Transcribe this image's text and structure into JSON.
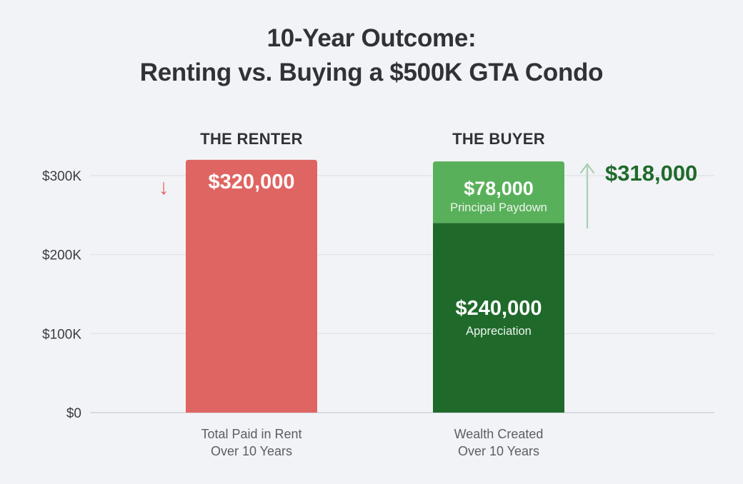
{
  "title": {
    "line1": "10-Year Outcome:",
    "line2": "Renting vs. Buying a $500K GTA Condo"
  },
  "colors": {
    "background": "#f2f3f6",
    "renter": "#df6562",
    "principal": "#59b05a",
    "appreciation": "#1f6a2b",
    "total_text": "#1f6a2b",
    "up_arrow": "#a9cfb0",
    "down_arrow": "#df6562",
    "grid": "#dfe1e5"
  },
  "chart_data": {
    "type": "bar",
    "stacked": true,
    "categories": [
      "THE RENTER",
      "THE BUYER"
    ],
    "category_footers": [
      [
        "Total Paid in Rent",
        "Over 10 Years"
      ],
      [
        "Wealth Created",
        "Over 10 Years"
      ]
    ],
    "y_ticks": [
      {
        "value": 0,
        "label": "$0"
      },
      {
        "value": 100000,
        "label": "$100K"
      },
      {
        "value": 200000,
        "label": "$200K"
      },
      {
        "value": 300000,
        "label": "$300K"
      }
    ],
    "ylim": [
      0,
      300000
    ],
    "grid": true,
    "series": [
      {
        "category_index": 0,
        "value": 320000,
        "label": "$320,000",
        "sublabel": "",
        "color_key": "renter"
      },
      {
        "category_index": 1,
        "value": 240000,
        "label": "$240,000",
        "sublabel": "Appreciation",
        "color_key": "appreciation"
      },
      {
        "category_index": 1,
        "value": 78000,
        "label": "$78,000",
        "sublabel": "Principal Paydown",
        "color_key": "principal"
      }
    ],
    "annotations": {
      "renter_arrow": "↓",
      "buyer_arrow": "↑",
      "buyer_total_value": 318000,
      "buyer_total_label": "$318,000"
    }
  }
}
